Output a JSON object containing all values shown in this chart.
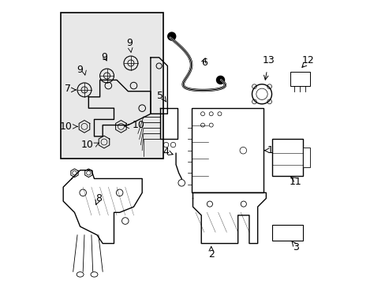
{
  "bg_color": "#ffffff",
  "line_color": "#000000",
  "box_bg": "#e8e8e8",
  "label_fontsize": 9,
  "part_lw": 1.0
}
